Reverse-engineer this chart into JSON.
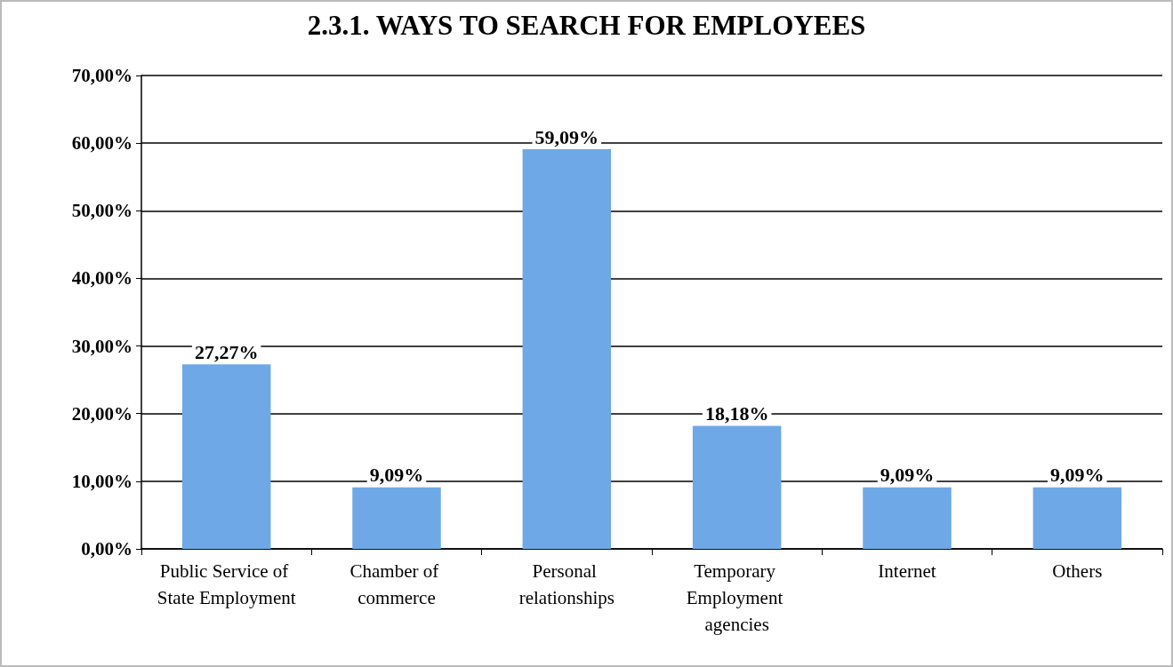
{
  "chart_data": {
    "type": "bar",
    "title": "2.3.1. WAYS TO SEARCH FOR EMPLOYEES",
    "categories": [
      "Public Service of State Employment",
      "Chamber of commerce",
      "Personal relationships",
      "Temporary Employment agencies",
      "Internet",
      "Others"
    ],
    "values": [
      27.27,
      9.09,
      59.09,
      18.18,
      9.09,
      9.09
    ],
    "value_labels": [
      "27,27%",
      "9,09%",
      "59,09%",
      "18,18%",
      "9,09%",
      "9,09%"
    ],
    "color": "#6ea8e6",
    "ylim": [
      0,
      70
    ],
    "yticks": [
      {
        "value": 0,
        "label": "0,00%"
      },
      {
        "value": 10,
        "label": "10,00%"
      },
      {
        "value": 20,
        "label": "20,00%"
      },
      {
        "value": 30,
        "label": "30,00%"
      },
      {
        "value": 40,
        "label": "40,00%"
      },
      {
        "value": 50,
        "label": "50,00%"
      },
      {
        "value": 60,
        "label": "60,00%"
      },
      {
        "value": 70,
        "label": "70,00%"
      }
    ],
    "grid": "y"
  }
}
